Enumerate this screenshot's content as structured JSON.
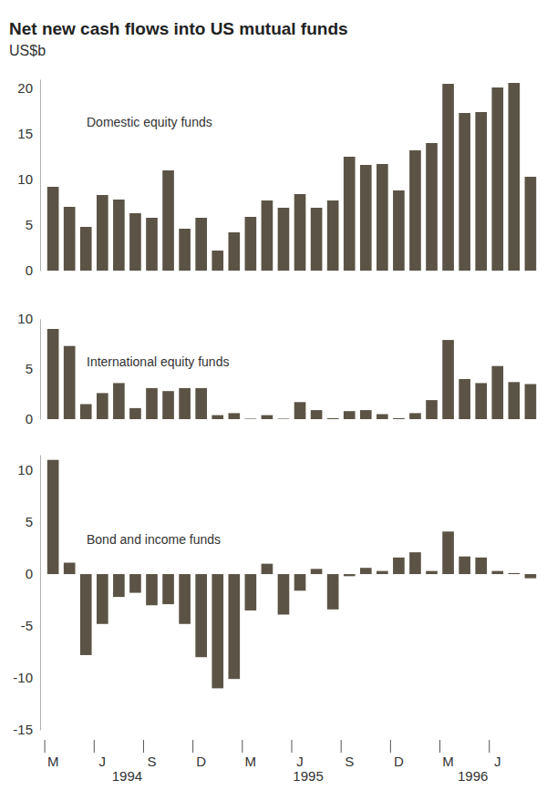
{
  "title": "Net new cash flows into US mutual funds",
  "subtitle": "US$b",
  "chart_data": [
    {
      "type": "bar",
      "title": "Domestic equity funds",
      "color": "#5b5446",
      "categories": [
        "M",
        null,
        null,
        "J",
        null,
        null,
        "S",
        null,
        null,
        "D",
        null,
        null,
        "M",
        null,
        null,
        "J",
        null,
        null,
        "S",
        null,
        null,
        "D",
        null,
        null,
        "M",
        null,
        null,
        "J",
        null,
        null
      ],
      "values": [
        9.2,
        7.0,
        4.8,
        8.3,
        7.8,
        6.3,
        5.8,
        11.0,
        4.6,
        5.8,
        2.2,
        4.2,
        5.9,
        7.7,
        6.9,
        8.4,
        6.9,
        7.7,
        12.5,
        11.6,
        11.7,
        8.8,
        13.2,
        14.0,
        20.5,
        17.3,
        17.4,
        20.1,
        20.6,
        10.3
      ],
      "ylim": [
        0,
        21
      ],
      "yticks": [
        0,
        5,
        10,
        15,
        20
      ],
      "grid": false,
      "tick_labels": "y"
    },
    {
      "type": "bar",
      "title": "International equity funds",
      "color": "#5b5446",
      "categories": [
        "M",
        null,
        null,
        "J",
        null,
        null,
        "S",
        null,
        null,
        "D",
        null,
        null,
        "M",
        null,
        null,
        "J",
        null,
        null,
        "S",
        null,
        null,
        "D",
        null,
        null,
        "M",
        null,
        null,
        "J",
        null,
        null
      ],
      "values": [
        9.0,
        7.3,
        1.5,
        2.6,
        3.6,
        1.1,
        3.1,
        2.8,
        3.1,
        3.1,
        0.4,
        0.6,
        0.05,
        0.4,
        0.05,
        1.7,
        0.9,
        0.1,
        0.8,
        0.9,
        0.5,
        0.1,
        0.6,
        1.9,
        7.9,
        4.0,
        3.6,
        5.3,
        3.7,
        3.5
      ],
      "ylim": [
        0,
        10
      ],
      "yticks": [
        0,
        5,
        10
      ],
      "grid": false,
      "tick_labels": "y"
    },
    {
      "type": "bar",
      "title": "Bond and income funds",
      "color": "#5b5446",
      "categories": [
        "M",
        null,
        null,
        "J",
        null,
        null,
        "S",
        null,
        null,
        "D",
        null,
        null,
        "M",
        null,
        null,
        "J",
        null,
        null,
        "S",
        null,
        null,
        "D",
        null,
        null,
        "M",
        null,
        null,
        "J",
        null,
        null
      ],
      "values": [
        11.0,
        1.1,
        -7.8,
        -4.8,
        -2.2,
        -1.8,
        -3.0,
        -2.9,
        -4.8,
        -8.0,
        -11.0,
        -10.1,
        -3.5,
        1.0,
        -3.9,
        -1.6,
        0.5,
        -3.4,
        -0.2,
        0.6,
        0.3,
        1.6,
        2.1,
        0.3,
        4.1,
        1.7,
        1.6,
        0.3,
        0.1,
        -0.4
      ],
      "ylim": [
        -15,
        11.5
      ],
      "yticks": [
        -15,
        -10,
        -5,
        0,
        5,
        10
      ],
      "grid": false,
      "x_groups": [
        {
          "label": "1994",
          "from": 0,
          "to": 9
        },
        {
          "label": "1995",
          "from": 10,
          "to": 21
        },
        {
          "label": "1996",
          "from": 22,
          "to": 29
        }
      ]
    }
  ]
}
